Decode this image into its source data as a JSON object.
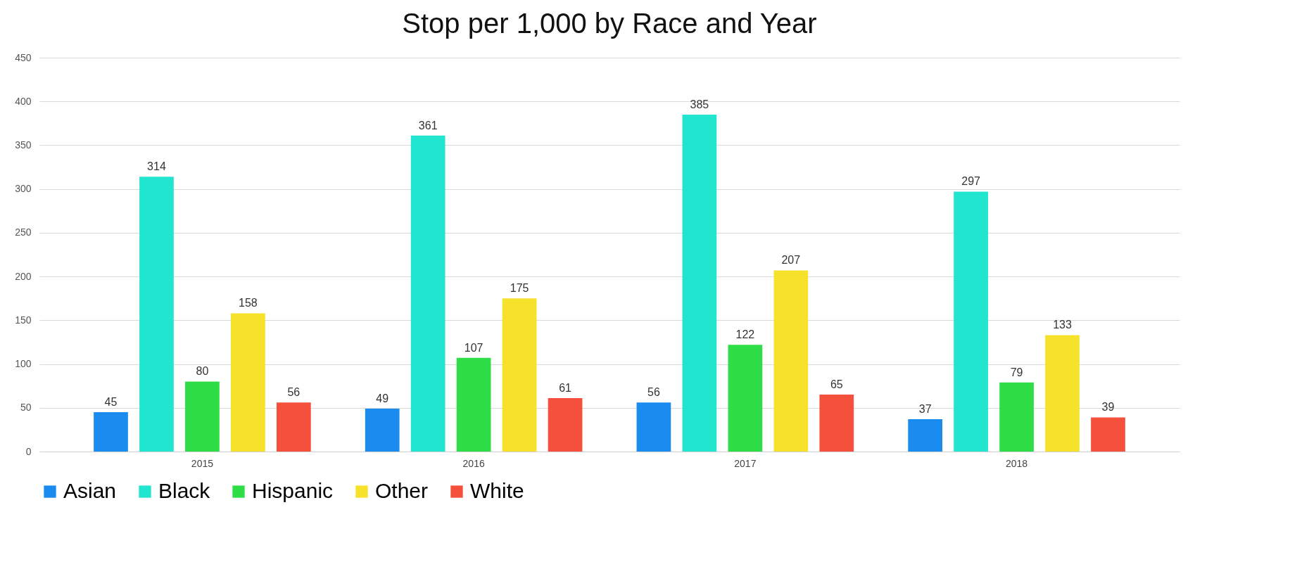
{
  "chart_data": {
    "type": "bar",
    "title": "Stop per 1,000 by Race and Year",
    "categories": [
      "2015",
      "2016",
      "2017",
      "2018"
    ],
    "series": [
      {
        "name": "Asian",
        "color": "#1a8cf0",
        "values": [
          45,
          49,
          56,
          37
        ]
      },
      {
        "name": "Black",
        "color": "#22e5cf",
        "values": [
          314,
          361,
          385,
          297
        ]
      },
      {
        "name": "Hispanic",
        "color": "#2fde47",
        "values": [
          80,
          107,
          122,
          79
        ]
      },
      {
        "name": "Other",
        "color": "#f6e12b",
        "values": [
          158,
          175,
          207,
          133
        ]
      },
      {
        "name": "White",
        "color": "#f5503c",
        "values": [
          56,
          61,
          65,
          39
        ]
      }
    ],
    "ylim": [
      0,
      450
    ],
    "yticks": [
      0,
      50,
      100,
      150,
      200,
      250,
      300,
      350,
      400,
      450
    ],
    "grid": "y",
    "legend": "bottom",
    "data_labels": true
  }
}
